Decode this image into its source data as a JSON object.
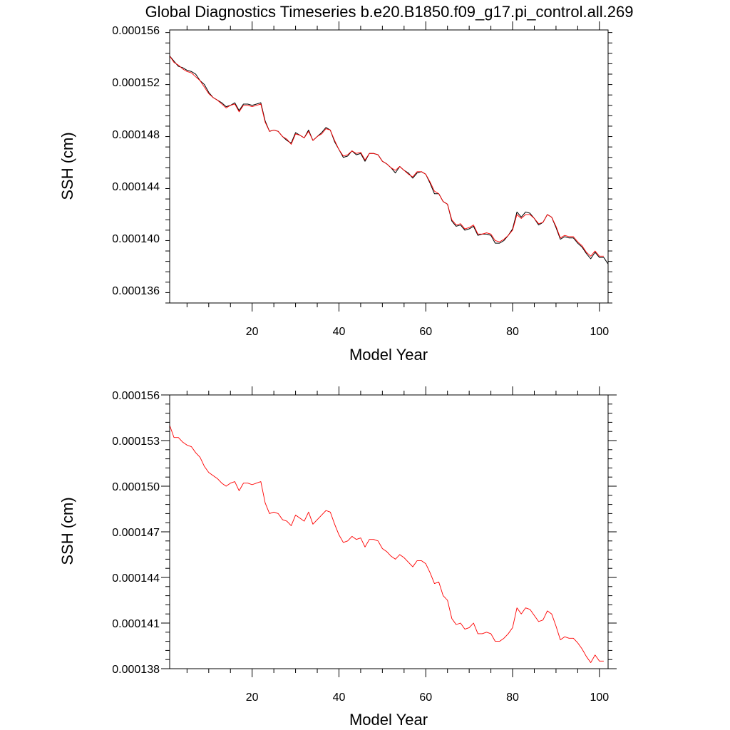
{
  "title": "Global Diagnostics Timeseries b.e20.B1850.f09_g17.pi_control.all.269",
  "colors": {
    "monthly": "#000000",
    "annual": "#ff0000",
    "frame": "#000000"
  },
  "chart_data": [
    {
      "type": "line",
      "xlabel": "Model Year",
      "ylabel": "SSH (cm)",
      "xlim": [
        1,
        102
      ],
      "ylim": [
        0.000135,
        0.000156
      ],
      "xticks": [
        "20",
        "40",
        "60",
        "80",
        "100"
      ],
      "yticks": [
        "0.000136",
        "0.000140",
        "0.000144",
        "0.000148",
        "0.000152",
        "0.000156"
      ],
      "series": [
        {
          "style": "monthly",
          "color": "#000000",
          "x": [
            1,
            2,
            3,
            4,
            5,
            6,
            7,
            8,
            9,
            10,
            11,
            12,
            13,
            14,
            15,
            16,
            17,
            18,
            19,
            20,
            21,
            22,
            23,
            24,
            25,
            26,
            27,
            28,
            29,
            30,
            31,
            32,
            33,
            34,
            35,
            36,
            37,
            38,
            39,
            40,
            41,
            42,
            43,
            44,
            45,
            46,
            47,
            48,
            49,
            50,
            51,
            52,
            53,
            54,
            55,
            56,
            57,
            58,
            59,
            60,
            61,
            62,
            63,
            64,
            65,
            66,
            67,
            68,
            69,
            70,
            71,
            72,
            73,
            74,
            75,
            76,
            77,
            78,
            79,
            80,
            81,
            82,
            83,
            84,
            85,
            86,
            87,
            88,
            89,
            90,
            91,
            92,
            93,
            94,
            95,
            96,
            97,
            98,
            99,
            100,
            101,
            102
          ],
          "values": [
            0.000154,
            0.0001536,
            0.0001532,
            0.0001531,
            0.0001529,
            0.0001528,
            0.0001526,
            0.0001521,
            0.0001518,
            0.0001512,
            0.0001508,
            0.0001506,
            0.0001504,
            0.0001501,
            0.0001502,
            0.0001504,
            0.0001498,
            0.0001503,
            0.0001503,
            0.0001502,
            0.0001503,
            0.0001504,
            0.000149,
            0.0001482,
            0.0001483,
            0.0001482,
            0.0001478,
            0.0001475,
            0.0001473,
            0.0001481,
            0.0001479,
            0.0001477,
            0.0001483,
            0.0001475,
            0.0001478,
            0.0001481,
            0.0001485,
            0.0001483,
            0.0001474,
            0.0001468,
            0.0001462,
            0.0001463,
            0.0001467,
            0.0001464,
            0.0001465,
            0.0001459,
            0.0001465,
            0.0001465,
            0.0001464,
            0.0001459,
            0.0001457,
            0.0001454,
            0.000145,
            0.0001455,
            0.0001452,
            0.000145,
            0.0001446,
            0.000145,
            0.0001451,
            0.0001449,
            0.0001442,
            0.0001434,
            0.0001434,
            0.0001428,
            0.0001426,
            0.0001413,
            0.0001409,
            0.000141,
            0.0001406,
            0.0001407,
            0.0001409,
            0.0001402,
            0.0001403,
            0.0001403,
            0.0001402,
            0.0001396,
            0.0001396,
            0.0001398,
            0.0001402,
            0.0001407,
            0.000142,
            0.0001416,
            0.000142,
            0.0001419,
            0.0001415,
            0.000141,
            0.0001412,
            0.0001418,
            0.0001416,
            0.0001408,
            0.0001399,
            0.0001401,
            0.00014,
            0.00014,
            0.0001396,
            0.0001393,
            0.0001388,
            0.0001384,
            0.0001389,
            0.0001385,
            0.0001385,
            0.000138
          ]
        },
        {
          "style": "annual",
          "color": "#ff0000",
          "x": [
            1,
            2,
            3,
            4,
            5,
            6,
            7,
            8,
            9,
            10,
            11,
            12,
            13,
            14,
            15,
            16,
            17,
            18,
            19,
            20,
            21,
            22,
            23,
            24,
            25,
            26,
            27,
            28,
            29,
            30,
            31,
            32,
            33,
            34,
            35,
            36,
            37,
            38,
            39,
            40,
            41,
            42,
            43,
            44,
            45,
            46,
            47,
            48,
            49,
            50,
            51,
            52,
            53,
            54,
            55,
            56,
            57,
            58,
            59,
            60,
            61,
            62,
            63,
            64,
            65,
            66,
            67,
            68,
            69,
            70,
            71,
            72,
            73,
            74,
            75,
            76,
            77,
            78,
            79,
            80,
            81,
            82,
            83,
            84,
            85,
            86,
            87,
            88,
            89,
            90,
            91,
            92,
            93,
            94,
            95,
            96,
            97,
            98,
            99,
            100,
            101
          ],
          "values": [
            0.000154,
            0.0001535,
            0.0001533,
            0.000153,
            0.0001528,
            0.0001527,
            0.0001524,
            0.0001521,
            0.0001516,
            0.0001511,
            0.0001508,
            0.0001506,
            0.0001503,
            0.00015,
            0.0001502,
            0.0001503,
            0.0001497,
            0.0001502,
            0.0001502,
            0.0001501,
            0.0001502,
            0.0001503,
            0.0001489,
            0.0001482,
            0.0001483,
            0.0001482,
            0.0001478,
            0.0001476,
            0.0001472,
            0.000148,
            0.0001479,
            0.0001477,
            0.0001482,
            0.0001475,
            0.0001478,
            0.000148,
            0.0001484,
            0.0001483,
            0.0001475,
            0.0001468,
            0.0001463,
            0.0001464,
            0.0001467,
            0.0001465,
            0.0001466,
            0.000146,
            0.0001465,
            0.0001465,
            0.0001464,
            0.0001459,
            0.0001457,
            0.0001454,
            0.0001452,
            0.0001455,
            0.0001452,
            0.0001449,
            0.0001447,
            0.0001451,
            0.0001451,
            0.0001449,
            0.0001443,
            0.0001436,
            0.0001434,
            0.0001428,
            0.0001426,
            0.0001414,
            0.000141,
            0.0001411,
            0.0001407,
            0.0001408,
            0.000141,
            0.0001403,
            0.0001403,
            0.0001404,
            0.0001403,
            0.0001398,
            0.0001397,
            0.0001399,
            0.0001402,
            0.0001406,
            0.0001418,
            0.0001415,
            0.0001418,
            0.0001418,
            0.0001415,
            0.0001411,
            0.0001412,
            0.0001418,
            0.0001416,
            0.0001409,
            0.00014,
            0.0001402,
            0.0001401,
            0.0001401,
            0.0001397,
            0.0001394,
            0.0001389,
            0.0001386,
            0.000139,
            0.0001386,
            0.0001386
          ]
        }
      ]
    },
    {
      "type": "line",
      "xlabel": "Model Year",
      "ylabel": "SSH (cm)",
      "xlim": [
        1,
        102
      ],
      "ylim": [
        0.000138,
        0.000156
      ],
      "xticks": [
        "20",
        "40",
        "60",
        "80",
        "100"
      ],
      "yticks": [
        "0.000138",
        "0.000141",
        "0.000144",
        "0.000147",
        "0.000150",
        "0.000153",
        "0.000156"
      ],
      "series": [
        {
          "style": "annual",
          "color": "#ff0000",
          "x": [
            1,
            2,
            3,
            4,
            5,
            6,
            7,
            8,
            9,
            10,
            11,
            12,
            13,
            14,
            15,
            16,
            17,
            18,
            19,
            20,
            21,
            22,
            23,
            24,
            25,
            26,
            27,
            28,
            29,
            30,
            31,
            32,
            33,
            34,
            35,
            36,
            37,
            38,
            39,
            40,
            41,
            42,
            43,
            44,
            45,
            46,
            47,
            48,
            49,
            50,
            51,
            52,
            53,
            54,
            55,
            56,
            57,
            58,
            59,
            60,
            61,
            62,
            63,
            64,
            65,
            66,
            67,
            68,
            69,
            70,
            71,
            72,
            73,
            74,
            75,
            76,
            77,
            78,
            79,
            80,
            81,
            82,
            83,
            84,
            85,
            86,
            87,
            88,
            89,
            90,
            91,
            92,
            93,
            94,
            95,
            96,
            97,
            98,
            99,
            100,
            101
          ],
          "values": [
            0.000154,
            0.0001532,
            0.0001532,
            0.0001529,
            0.0001527,
            0.0001526,
            0.0001522,
            0.0001519,
            0.0001513,
            0.0001509,
            0.0001507,
            0.0001505,
            0.0001502,
            0.00015,
            0.0001502,
            0.0001503,
            0.0001497,
            0.0001502,
            0.0001502,
            0.0001501,
            0.0001502,
            0.0001503,
            0.0001489,
            0.0001482,
            0.0001483,
            0.0001482,
            0.0001478,
            0.0001477,
            0.0001474,
            0.0001481,
            0.0001479,
            0.0001477,
            0.0001483,
            0.0001475,
            0.0001478,
            0.0001481,
            0.0001484,
            0.0001483,
            0.0001475,
            0.0001468,
            0.0001463,
            0.0001464,
            0.0001467,
            0.0001465,
            0.0001466,
            0.000146,
            0.0001465,
            0.0001465,
            0.0001464,
            0.0001459,
            0.0001457,
            0.0001454,
            0.0001452,
            0.0001455,
            0.0001453,
            0.000145,
            0.0001447,
            0.0001451,
            0.0001451,
            0.0001449,
            0.0001443,
            0.0001436,
            0.0001437,
            0.0001428,
            0.0001425,
            0.0001413,
            0.0001409,
            0.000141,
            0.0001406,
            0.0001407,
            0.000141,
            0.0001403,
            0.0001403,
            0.0001404,
            0.0001403,
            0.0001398,
            0.0001398,
            0.00014,
            0.0001403,
            0.0001407,
            0.000142,
            0.0001416,
            0.000142,
            0.0001419,
            0.0001415,
            0.0001411,
            0.0001412,
            0.0001418,
            0.0001416,
            0.0001408,
            0.0001399,
            0.0001401,
            0.00014,
            0.00014,
            0.0001397,
            0.0001393,
            0.0001388,
            0.0001384,
            0.0001389,
            0.0001385,
            0.0001385
          ]
        }
      ]
    }
  ]
}
